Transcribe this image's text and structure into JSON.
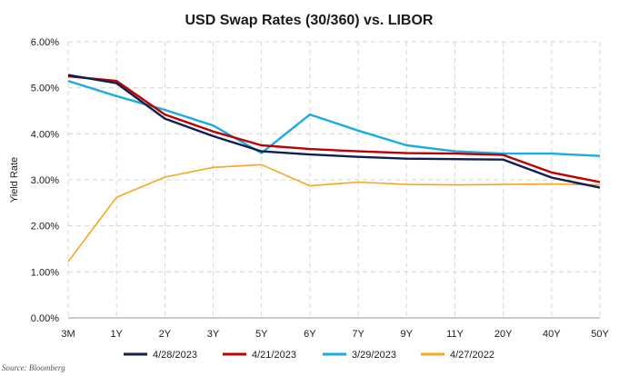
{
  "chart_data": {
    "type": "line",
    "title": "USD Swap Rates (30/360) vs. LIBOR",
    "xlabel": "",
    "ylabel": "Yield Rate",
    "categories": [
      "3M",
      "1Y",
      "2Y",
      "3Y",
      "5Y",
      "6Y",
      "7Y",
      "9Y",
      "11Y",
      "20Y",
      "40Y",
      "50Y"
    ],
    "ylim": [
      0,
      6
    ],
    "yticks": [
      "0.00%",
      "1.00%",
      "2.00%",
      "3.00%",
      "4.00%",
      "5.00%",
      "6.00%"
    ],
    "grid": true,
    "legend_position": "bottom",
    "series": [
      {
        "name": "4/28/2023",
        "color": "#0f1f4f",
        "values": [
          5.28,
          5.1,
          4.33,
          3.95,
          3.62,
          3.55,
          3.5,
          3.46,
          3.45,
          3.44,
          3.05,
          2.83
        ]
      },
      {
        "name": "4/21/2023",
        "color": "#c00000",
        "values": [
          5.25,
          5.15,
          4.42,
          4.05,
          3.75,
          3.67,
          3.62,
          3.58,
          3.57,
          3.54,
          3.16,
          2.95
        ]
      },
      {
        "name": "3/29/2023",
        "color": "#1aabe3",
        "values": [
          5.15,
          4.82,
          4.52,
          4.18,
          3.58,
          4.42,
          4.07,
          3.75,
          3.62,
          3.57,
          3.57,
          3.52
        ]
      },
      {
        "name": "4/27/2022",
        "color": "#f5a623",
        "values": [
          1.22,
          2.62,
          3.06,
          3.27,
          3.33,
          2.87,
          2.95,
          2.9,
          2.89,
          2.9,
          2.91,
          2.89
        ]
      }
    ]
  },
  "source_text": "Source: Bloomberg"
}
